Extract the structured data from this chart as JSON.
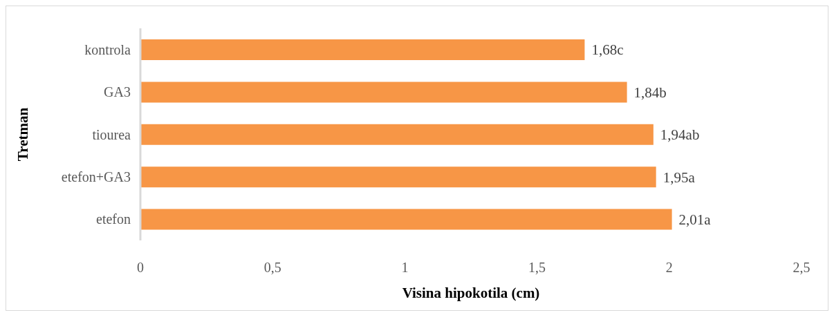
{
  "chart_data": {
    "type": "bar",
    "orientation": "horizontal",
    "xlabel": "Visina hipokotila (cm)",
    "ylabel": "Tretman",
    "categories": [
      "kontrola",
      "GA3",
      "tiourea",
      "etefon+GA3",
      "etefon"
    ],
    "values": [
      1.68,
      1.84,
      1.94,
      1.95,
      2.01
    ],
    "value_labels": [
      "1,68c",
      "1,84b",
      "1,94ab",
      "1,95a",
      "2,01a"
    ],
    "color": "#f79646",
    "xlim": [
      0,
      2.5
    ],
    "xticks": [
      0,
      {
        "value": 0.5,
        "label": "0,5"
      },
      1,
      {
        "value": 1.5,
        "label": "1,5"
      },
      2,
      {
        "value": 2.5,
        "label": "2,5"
      }
    ],
    "grid": false,
    "legend": false
  }
}
